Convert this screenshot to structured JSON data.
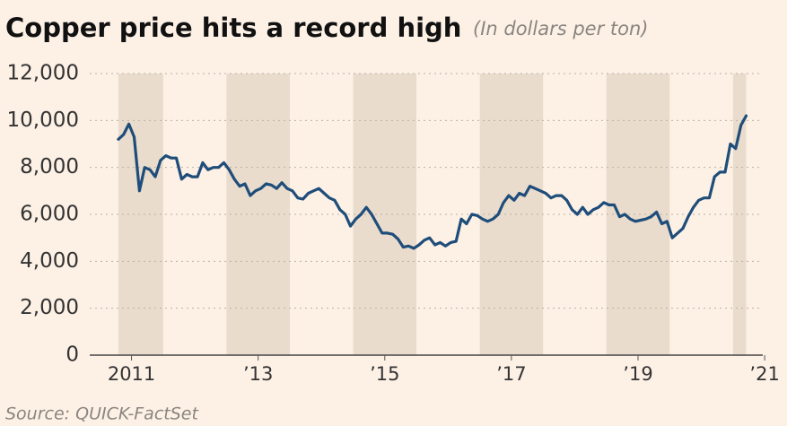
{
  "chart_data": {
    "type": "line",
    "title": "Copper price hits a record high",
    "subtitle": "(In dollars per ton)",
    "source": "Source: QUICK-FactSet",
    "color": "#1f4d7a",
    "band_color": "#eadccd",
    "grid": true,
    "x": [
      2011.292,
      2011.375,
      2011.458,
      2011.542,
      2011.625,
      2011.708,
      2011.792,
      2011.875,
      2011.958,
      2012.042,
      2012.125,
      2012.208,
      2012.292,
      2012.375,
      2012.458,
      2012.542,
      2012.625,
      2012.708,
      2012.792,
      2012.875,
      2012.958,
      2013.042,
      2013.125,
      2013.208,
      2013.292,
      2013.375,
      2013.458,
      2013.542,
      2013.625,
      2013.708,
      2013.792,
      2013.875,
      2013.958,
      2014.042,
      2014.125,
      2014.208,
      2014.292,
      2014.375,
      2014.458,
      2014.542,
      2014.625,
      2014.708,
      2014.792,
      2014.875,
      2014.958,
      2015.042,
      2015.125,
      2015.208,
      2015.292,
      2015.375,
      2015.458,
      2015.542,
      2015.625,
      2015.708,
      2015.792,
      2015.875,
      2015.958,
      2016.042,
      2016.125,
      2016.208,
      2016.292,
      2016.375,
      2016.458,
      2016.542,
      2016.625,
      2016.708,
      2016.792,
      2016.875,
      2016.958,
      2017.042,
      2017.125,
      2017.208,
      2017.292,
      2017.375,
      2017.458,
      2017.542,
      2017.625,
      2017.708,
      2017.792,
      2017.875,
      2017.958,
      2018.042,
      2018.125,
      2018.208,
      2018.292,
      2018.375,
      2018.458,
      2018.542,
      2018.625,
      2018.708,
      2018.792,
      2018.875,
      2018.958,
      2019.042,
      2019.125,
      2019.208,
      2019.292,
      2019.375,
      2019.458,
      2019.542,
      2019.625,
      2019.708,
      2019.792,
      2019.875,
      2019.958,
      2020.042,
      2020.125,
      2020.208,
      2020.292,
      2020.375,
      2020.458,
      2020.542,
      2020.625,
      2020.708,
      2020.792,
      2020.875,
      2020.958,
      2021.042,
      2021.125,
      2021.208
    ],
    "values": [
      9200,
      9400,
      9850,
      9300,
      7000,
      8000,
      7900,
      7600,
      8300,
      8500,
      8400,
      8400,
      7500,
      7700,
      7600,
      7600,
      8200,
      7900,
      8000,
      8000,
      8200,
      7900,
      7500,
      7200,
      7300,
      6800,
      7000,
      7100,
      7300,
      7250,
      7100,
      7350,
      7100,
      7000,
      6700,
      6650,
      6900,
      7000,
      7100,
      6900,
      6700,
      6600,
      6200,
      6000,
      5500,
      5800,
      6000,
      6300,
      6000,
      5600,
      5200,
      5200,
      5150,
      4950,
      4600,
      4650,
      4550,
      4700,
      4900,
      5000,
      4700,
      4800,
      4650,
      4800,
      4850,
      5800,
      5600,
      6000,
      5950,
      5800,
      5700,
      5800,
      6000,
      6500,
      6800,
      6600,
      6900,
      6800,
      7200,
      7100,
      7000,
      6900,
      6700,
      6800,
      6800,
      6600,
      6200,
      6000,
      6300,
      6000,
      6200,
      6300,
      6500,
      6400,
      6400,
      5900,
      6000,
      5800,
      5700,
      5750,
      5800,
      5900,
      6100,
      5600,
      5700,
      5000,
      5200,
      5400,
      5900,
      6300,
      6600,
      6700,
      6700,
      7600,
      7800,
      7800,
      9000,
      8800,
      9800,
      10200
    ],
    "xlim": [
      2010.84,
      2021.47
    ],
    "ylim": [
      0,
      12000
    ],
    "yticks": [
      0,
      {
        "value": 2000,
        "label": "2,000"
      },
      {
        "value": 4000,
        "label": "4,000"
      },
      {
        "value": 6000,
        "label": "6,000"
      },
      {
        "value": 8000,
        "label": "8,000"
      },
      {
        "value": 10000,
        "label": "10,000"
      },
      {
        "value": 12000,
        "label": "12,000"
      }
    ],
    "xticks": [
      {
        "value": 2011.5,
        "label": "2011"
      },
      {
        "value": 2013.5,
        "label": "’13"
      },
      {
        "value": 2015.5,
        "label": "’15"
      },
      {
        "value": 2017.5,
        "label": "’17"
      },
      {
        "value": 2019.5,
        "label": "’19"
      },
      {
        "value": 2021.5,
        "label": "’21"
      }
    ]
  }
}
